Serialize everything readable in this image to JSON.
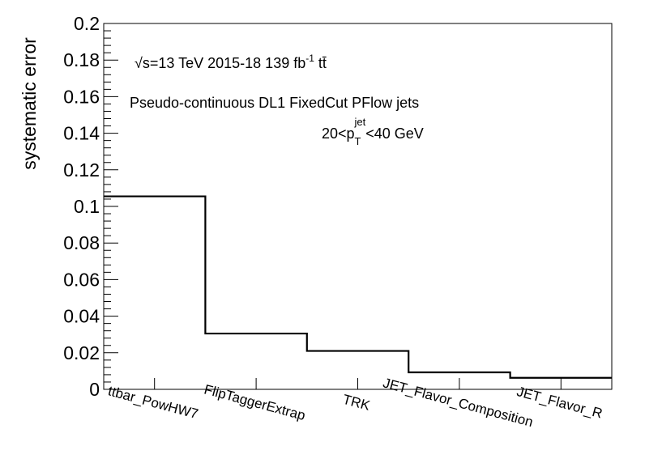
{
  "chart_data": {
    "type": "bar",
    "style": "step-histogram",
    "categories": [
      "ttbar_PowHW7",
      "FlipTaggerExtrap",
      "TRK",
      "JET_Flavor_Composition",
      "JET_Flavor_R"
    ],
    "values": [
      0.1055,
      0.0305,
      0.021,
      0.0093,
      0.0063
    ],
    "ylabel": "systematic error",
    "xlabel": "",
    "ylim": [
      0,
      0.2
    ],
    "yticks": [
      "0",
      "0.02",
      "0.04",
      "0.06",
      "0.08",
      "0.1",
      "0.12",
      "0.14",
      "0.16",
      "0.18",
      "0.2"
    ],
    "grid": false,
    "line_color": "#000000",
    "annotations": {
      "energy_sqrt": "√s",
      "energy_rest": "=13 TeV  2015-18  139 fb",
      "lumi_exp": "-1",
      "process": " tt̄",
      "jets": "Pseudo-continuous DL1 FixedCut PFlow jets",
      "pt_lo": "20<p",
      "pt_sub": "T",
      "pt_sup": "jet",
      "pt_hi": "<40 GeV"
    }
  }
}
